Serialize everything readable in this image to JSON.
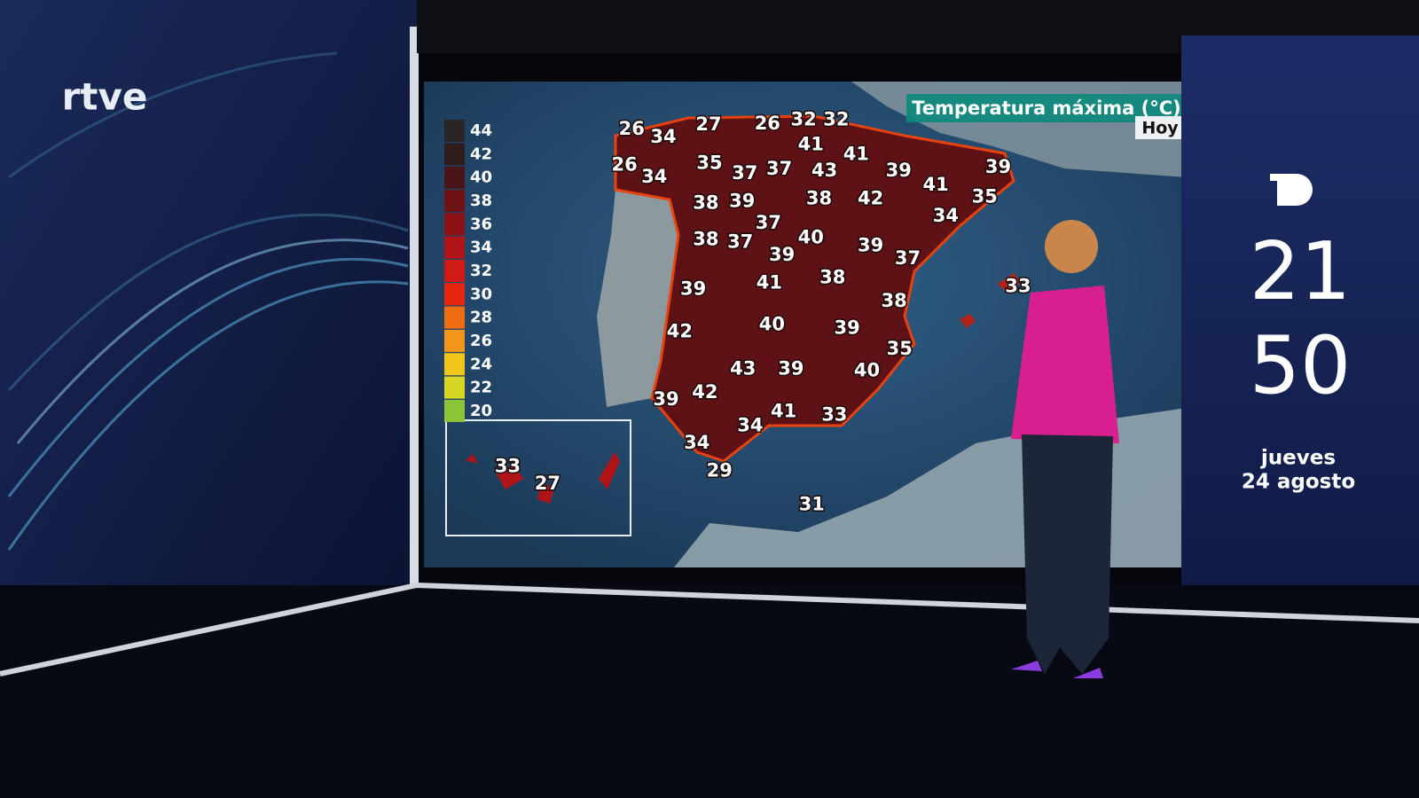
{
  "logo": "rtve",
  "map": {
    "title": "Temperatura máxima (°C)",
    "day": "Hoy",
    "legend": [
      {
        "value": 44,
        "color": "#2b2626"
      },
      {
        "value": 42,
        "color": "#2f1d1e"
      },
      {
        "value": 40,
        "color": "#4a1518"
      },
      {
        "value": 38,
        "color": "#6e1216"
      },
      {
        "value": 36,
        "color": "#8e1115"
      },
      {
        "value": 34,
        "color": "#b01418"
      },
      {
        "value": 32,
        "color": "#cf1a16"
      },
      {
        "value": 30,
        "color": "#e8260f"
      },
      {
        "value": 28,
        "color": "#ef6d12"
      },
      {
        "value": 26,
        "color": "#f3951a"
      },
      {
        "value": 24,
        "color": "#f2c51c"
      },
      {
        "value": 22,
        "color": "#d8d625"
      },
      {
        "value": 20,
        "color": "#8cc43a"
      }
    ],
    "temperatures": [
      26,
      34,
      27,
      26,
      32,
      32,
      26,
      34,
      35,
      37,
      37,
      41,
      43,
      41,
      39,
      41,
      39,
      35,
      34,
      42,
      38,
      39,
      38,
      37,
      38,
      37,
      39,
      40,
      39,
      37,
      33,
      41,
      38,
      39,
      38,
      40,
      39,
      42,
      35,
      40,
      43,
      39,
      42,
      39,
      41,
      33,
      34,
      34,
      29,
      31
    ],
    "canarias": [
      33,
      27
    ]
  },
  "clock": {
    "hour": "21",
    "minute": "50",
    "weekday": "jueves",
    "date": "24 agosto"
  }
}
